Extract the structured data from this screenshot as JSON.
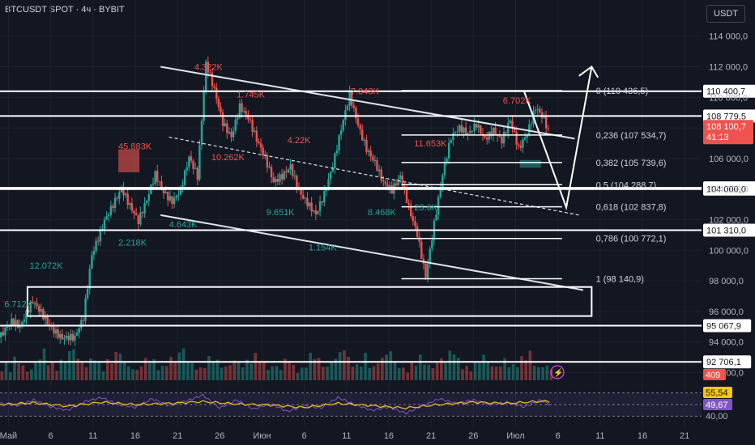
{
  "header": {
    "symbol": "BTCUSDT SPOT · 4ч · BYBIT",
    "currency": "USDT"
  },
  "colors": {
    "bg": "#131722",
    "up": "#26a69a",
    "down": "#ef5350",
    "rsi": "#7e57c2",
    "rsi_ma": "#f5c518",
    "axis_text": "#b2b5be"
  },
  "chart_data": {
    "type": "candlestick",
    "x_ticks": [
      "Май",
      "6",
      "11",
      "16",
      "21",
      "26",
      "Июн",
      "6",
      "11",
      "16",
      "21",
      "26",
      "Июл",
      "6",
      "11",
      "16",
      "21"
    ],
    "y_ticks": [
      "114 000,0",
      "112 000,0",
      "110 000,0",
      "108 000,0",
      "106 000,0",
      "104 000,0",
      "102 000,0",
      "100 000,0",
      "98 000,0",
      "96 000,0",
      "94 000,0",
      "92 000,0"
    ],
    "ylim": [
      91500,
      115200
    ],
    "price_path": [
      [
        0,
        94300
      ],
      [
        3,
        95100
      ],
      [
        5,
        94700
      ],
      [
        8,
        96700
      ],
      [
        10,
        96200
      ],
      [
        13,
        95000
      ],
      [
        15,
        94300
      ],
      [
        18,
        94000
      ],
      [
        20,
        95300
      ],
      [
        22,
        99600
      ],
      [
        25,
        102200
      ],
      [
        27,
        103300
      ],
      [
        29,
        104200
      ],
      [
        31,
        102800
      ],
      [
        33,
        101600
      ],
      [
        35,
        103000
      ],
      [
        37,
        104900
      ],
      [
        39,
        104000
      ],
      [
        41,
        103500
      ],
      [
        43,
        104200
      ],
      [
        45,
        106100
      ],
      [
        47,
        104600
      ],
      [
        49,
        111900
      ],
      [
        51,
        110300
      ],
      [
        53,
        108400
      ],
      [
        55,
        107700
      ],
      [
        57,
        109700
      ],
      [
        59,
        108800
      ],
      [
        61,
        107100
      ],
      [
        63,
        105700
      ],
      [
        65,
        104200
      ],
      [
        67,
        104800
      ],
      [
        69,
        105700
      ],
      [
        71,
        104200
      ],
      [
        73,
        103300
      ],
      [
        75,
        102300
      ],
      [
        77,
        103400
      ],
      [
        79,
        105200
      ],
      [
        81,
        107800
      ],
      [
        83,
        110300
      ],
      [
        85,
        108500
      ],
      [
        87,
        106900
      ],
      [
        89,
        105800
      ],
      [
        91,
        104200
      ],
      [
        93,
        103600
      ],
      [
        95,
        104600
      ],
      [
        97,
        102800
      ],
      [
        99,
        101300
      ],
      [
        101,
        98600
      ],
      [
        103,
        101900
      ],
      [
        105,
        104900
      ],
      [
        107,
        107100
      ],
      [
        109,
        107700
      ],
      [
        111,
        107500
      ],
      [
        113,
        108400
      ],
      [
        115,
        107600
      ],
      [
        117,
        108100
      ],
      [
        119,
        107200
      ],
      [
        121,
        108300
      ],
      [
        123,
        106300
      ],
      [
        125,
        107400
      ],
      [
        127,
        109400
      ],
      [
        129,
        108900
      ],
      [
        130,
        108100
      ]
    ],
    "volume_heights": [
      18,
      22,
      14,
      30,
      26,
      20,
      12,
      16,
      24,
      34,
      40,
      28,
      22,
      18,
      26,
      30,
      38,
      46,
      30,
      24,
      20,
      28,
      34,
      22,
      18,
      26,
      30,
      36,
      42,
      24,
      20,
      16,
      14,
      22,
      28,
      32,
      26,
      20,
      18,
      24,
      30,
      26,
      38,
      44,
      28,
      22,
      18,
      16,
      24,
      30,
      34,
      26,
      20,
      18,
      22,
      28,
      24,
      20,
      26,
      30,
      34,
      38,
      22,
      18
    ],
    "volume_ylim": [
      0,
      80
    ],
    "rsi_path": [
      [
        0,
        52
      ],
      [
        4,
        48
      ],
      [
        8,
        58
      ],
      [
        12,
        46
      ],
      [
        16,
        40
      ],
      [
        20,
        55
      ],
      [
        24,
        62
      ],
      [
        28,
        50
      ],
      [
        32,
        45
      ],
      [
        36,
        60
      ],
      [
        40,
        48
      ],
      [
        44,
        56
      ],
      [
        48,
        66
      ],
      [
        52,
        44
      ],
      [
        56,
        58
      ],
      [
        60,
        42
      ],
      [
        64,
        52
      ],
      [
        68,
        38
      ],
      [
        72,
        48
      ],
      [
        76,
        44
      ],
      [
        80,
        62
      ],
      [
        84,
        50
      ],
      [
        88,
        40
      ],
      [
        92,
        46
      ],
      [
        96,
        35
      ],
      [
        100,
        48
      ],
      [
        104,
        60
      ],
      [
        108,
        52
      ],
      [
        112,
        58
      ],
      [
        116,
        50
      ],
      [
        120,
        54
      ],
      [
        124,
        46
      ],
      [
        128,
        58
      ],
      [
        130,
        49.67
      ]
    ],
    "rsi_ma_path": [
      [
        0,
        50
      ],
      [
        8,
        53
      ],
      [
        16,
        47
      ],
      [
        24,
        54
      ],
      [
        32,
        50
      ],
      [
        40,
        52
      ],
      [
        48,
        55
      ],
      [
        56,
        51
      ],
      [
        64,
        49
      ],
      [
        72,
        45
      ],
      [
        80,
        52
      ],
      [
        88,
        48
      ],
      [
        96,
        44
      ],
      [
        104,
        50
      ],
      [
        112,
        54
      ],
      [
        120,
        52
      ],
      [
        128,
        55.54
      ],
      [
        130,
        55.5
      ]
    ],
    "rsi_ylim": [
      25,
      75
    ],
    "fib_levels": [
      {
        "label": "0 (110 436,5)",
        "value": 110436.5
      },
      {
        "label": "0,236 (107 534,7)",
        "value": 107534.7
      },
      {
        "label": "0,382 (105 739,6)",
        "value": 105739.6
      },
      {
        "label": "0,5 (104 288,7)",
        "value": 104288.7
      },
      {
        "label": "0,618 (102 837,8)",
        "value": 102837.8
      },
      {
        "label": "0,786 (100 772,1)",
        "value": 100772.1
      },
      {
        "label": "1 (98 140,9)",
        "value": 98140.9
      }
    ],
    "horizontal_levels": [
      {
        "label": "110 400,7",
        "value": 110400.7
      },
      {
        "label": "108 779,5",
        "value": 108779.5
      },
      {
        "label": "104 081,5",
        "value": 104081.5
      },
      {
        "label": "104 000,0",
        "value": 104000.0
      },
      {
        "label": "101 310,0",
        "value": 101310.0
      },
      {
        "label": "95 067,9",
        "value": 95067.9
      },
      {
        "label": "92 706,1",
        "value": 92706.1
      }
    ],
    "current_price": {
      "label": "108 100,7",
      "timer": "41:13"
    },
    "volume_label": "409",
    "rsi_labels": {
      "ma": "55,54",
      "rsi": "49,67",
      "scale": "40,00"
    },
    "annotations": [
      {
        "text": "4.322K",
        "x": 46,
        "y": 111800
      },
      {
        "text": "1.745K",
        "x": 56,
        "y": 110000
      },
      {
        "text": "7.343K",
        "x": 83,
        "y": 110200
      },
      {
        "text": "6.702K",
        "x": 119,
        "y": 109600
      },
      {
        "text": "45.883K",
        "x": 28,
        "y": 106600
      },
      {
        "text": "4.22K",
        "x": 68,
        "y": 107000
      },
      {
        "text": "11.653K",
        "x": 98,
        "y": 106800
      },
      {
        "text": "12.072K",
        "x": 7,
        "y": 98800
      },
      {
        "text": "6.712K",
        "x": 1,
        "y": 96300
      },
      {
        "text": "10.262K",
        "x": 50,
        "y": 105900
      },
      {
        "text": "9.651K",
        "x": 63,
        "y": 102300
      },
      {
        "text": "8.468K",
        "x": 87,
        "y": 102300
      },
      {
        "text": "23.6K",
        "x": 98,
        "y": 102600
      },
      {
        "text": "4.643K",
        "x": 40,
        "y": 101500
      },
      {
        "text": "2.218K",
        "x": 28,
        "y": 100300
      },
      {
        "text": "1.154K",
        "x": 73,
        "y": 100000
      }
    ]
  }
}
